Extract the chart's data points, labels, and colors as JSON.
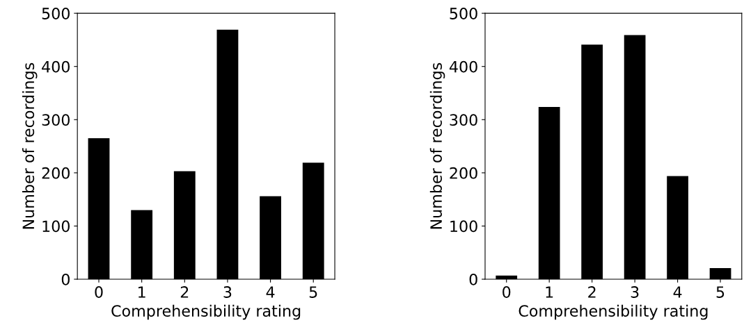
{
  "chart_data": [
    {
      "type": "bar",
      "xlabel": "Comprehensibility rating",
      "ylabel": "Number of recordings",
      "categories": [
        "0",
        "1",
        "2",
        "3",
        "4",
        "5"
      ],
      "values": [
        265,
        130,
        203,
        469,
        156,
        219
      ],
      "color": "#000000",
      "ylim": [
        0,
        500
      ],
      "yticks": [
        0,
        100,
        200,
        300,
        400,
        500
      ],
      "grid": false,
      "legend": false
    },
    {
      "type": "bar",
      "xlabel": "Comprehensibility rating",
      "ylabel": "Number of recordings",
      "categories": [
        "0",
        "1",
        "2",
        "3",
        "4",
        "5"
      ],
      "values": [
        7,
        324,
        441,
        459,
        194,
        21
      ],
      "color": "#000000",
      "ylim": [
        0,
        500
      ],
      "yticks": [
        0,
        100,
        200,
        300,
        400,
        500
      ],
      "grid": false,
      "legend": false
    }
  ]
}
